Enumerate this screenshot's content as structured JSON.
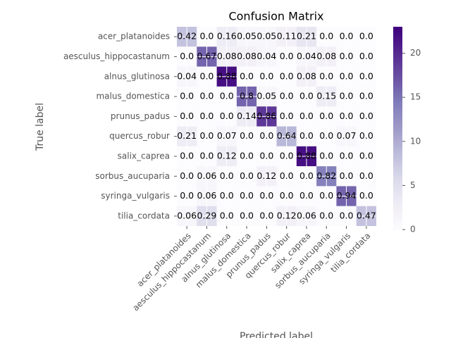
{
  "chart_data": {
    "type": "heatmap",
    "title": "Confusion Matrix",
    "x_label": "Predicted label",
    "y_label": "True label",
    "categories": [
      "acer_platanoides",
      "aesculus_hippocastanum",
      "alnus_glutinosa",
      "malus_domestica",
      "prunus_padus",
      "quercus_robur",
      "salix_caprea",
      "sorbus_aucuparia",
      "syringa_vulgaris",
      "tilia_cordata"
    ],
    "values": [
      [
        0.42,
        0,
        0.16,
        0.05,
        0.05,
        0.11,
        0.21,
        0,
        0,
        0
      ],
      [
        0,
        0.67,
        0.08,
        0.08,
        0.04,
        0,
        0.04,
        0.08,
        0,
        0
      ],
      [
        0.04,
        0,
        0.88,
        0,
        0,
        0,
        0.08,
        0,
        0,
        0
      ],
      [
        0,
        0,
        0,
        0.8,
        0.05,
        0,
        0,
        0.15,
        0,
        0
      ],
      [
        0,
        0,
        0,
        0.14,
        0.86,
        0,
        0,
        0,
        0,
        0
      ],
      [
        0.21,
        0,
        0.07,
        0,
        0,
        0.64,
        0,
        0,
        0.07,
        0
      ],
      [
        0,
        0,
        0.12,
        0,
        0,
        0,
        0.88,
        0,
        0,
        0
      ],
      [
        0,
        0.06,
        0,
        0,
        0.12,
        0,
        0,
        0.82,
        0,
        0
      ],
      [
        0,
        0.06,
        0,
        0,
        0,
        0,
        0,
        0,
        0.94,
        0
      ],
      [
        0.06,
        0.29,
        0,
        0,
        0,
        0.12,
        0.06,
        0,
        0,
        0.47
      ]
    ],
    "value_labels": [
      [
        "0.42",
        "0.0",
        "0.16",
        "0.05",
        "0.05",
        "0.11",
        "0.21",
        "0.0",
        "0.0",
        "0.0"
      ],
      [
        "0.0",
        "0.67",
        "0.08",
        "0.08",
        "0.04",
        "0.0",
        "0.04",
        "0.08",
        "0.0",
        "0.0"
      ],
      [
        "0.04",
        "0.0",
        "0.88",
        "0.0",
        "0.0",
        "0.0",
        "0.08",
        "0.0",
        "0.0",
        "0.0"
      ],
      [
        "0.0",
        "0.0",
        "0.0",
        "0.8",
        "0.05",
        "0.0",
        "0.0",
        "0.15",
        "0.0",
        "0.0"
      ],
      [
        "0.0",
        "0.0",
        "0.0",
        "0.14",
        "0.86",
        "0.0",
        "0.0",
        "0.0",
        "0.0",
        "0.0"
      ],
      [
        "0.21",
        "0.0",
        "0.07",
        "0.0",
        "0.0",
        "0.64",
        "0.0",
        "0.0",
        "0.07",
        "0.0"
      ],
      [
        "0.0",
        "0.0",
        "0.12",
        "0.0",
        "0.0",
        "0.0",
        "0.88",
        "0.0",
        "0.0",
        "0.0"
      ],
      [
        "0.0",
        "0.06",
        "0.0",
        "0.0",
        "0.12",
        "0.0",
        "0.0",
        "0.82",
        "0.0",
        "0.0"
      ],
      [
        "0.0",
        "0.06",
        "0.0",
        "0.0",
        "0.0",
        "0.0",
        "0.0",
        "0.0",
        "0.94",
        "0.0"
      ],
      [
        "0.06",
        "0.29",
        "0.0",
        "0.0",
        "0.0",
        "0.12",
        "0.06",
        "0.0",
        "0.0",
        "0.47"
      ]
    ],
    "counts": [
      [
        8,
        0,
        3,
        1,
        1,
        2,
        4,
        0,
        0,
        0
      ],
      [
        0,
        16,
        2,
        2,
        1,
        0,
        1,
        2,
        0,
        0
      ],
      [
        1,
        0,
        22,
        0,
        0,
        0,
        2,
        0,
        0,
        0
      ],
      [
        0,
        0,
        0,
        16,
        1,
        0,
        0,
        3,
        0,
        0
      ],
      [
        0,
        0,
        0,
        3,
        19,
        0,
        0,
        0,
        0,
        0
      ],
      [
        3,
        0,
        1,
        0,
        0,
        9,
        0,
        0,
        1,
        0
      ],
      [
        0,
        0,
        3,
        0,
        0,
        0,
        22,
        0,
        0,
        0
      ],
      [
        0,
        1,
        0,
        0,
        2,
        0,
        0,
        14,
        0,
        0
      ],
      [
        0,
        1,
        0,
        0,
        0,
        0,
        0,
        0,
        16,
        0
      ],
      [
        1,
        5,
        0,
        0,
        0,
        2,
        1,
        0,
        0,
        8
      ]
    ],
    "colormap": "Purples",
    "clim": [
      0,
      23
    ],
    "cticks": [
      0,
      5,
      10,
      15,
      20
    ],
    "grid": true
  }
}
